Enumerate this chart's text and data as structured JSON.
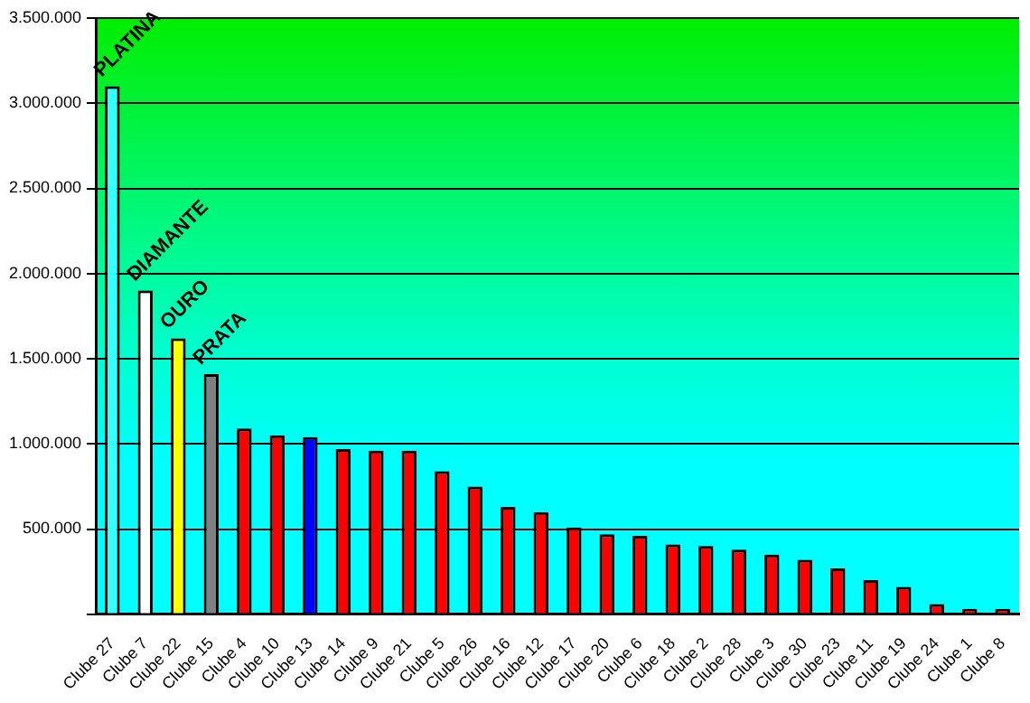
{
  "chart_data": {
    "type": "bar",
    "categories": [
      "Clube 27",
      "Clube 7",
      "Clube 22",
      "Clube 15",
      "Clube 4",
      "Clube 10",
      "Clube 13",
      "Clube 14",
      "Clube 9",
      "Clube 21",
      "Clube 5",
      "Clube 26",
      "Clube 16",
      "Clube 12",
      "Clube 17",
      "Clube 20",
      "Clube 6",
      "Clube 18",
      "Clube 2",
      "Clube 28",
      "Clube 3",
      "Clube 30",
      "Clube 23",
      "Clube 11",
      "Clube 19",
      "Clube 24",
      "Clube 1",
      "Clube 8"
    ],
    "values": [
      3100000,
      1900000,
      1620000,
      1410000,
      1090000,
      1050000,
      1040000,
      970000,
      960000,
      960000,
      840000,
      750000,
      630000,
      600000,
      510000,
      470000,
      460000,
      410000,
      400000,
      380000,
      350000,
      320000,
      270000,
      200000,
      160000,
      60000,
      30000,
      30000
    ],
    "colors": [
      "#33ffff",
      "#ffffff",
      "#ffff00",
      "#808080",
      "#ff0000",
      "#ff0000",
      "#0000ff",
      "#ff0000",
      "#ff0000",
      "#ff0000",
      "#ff0000",
      "#ff0000",
      "#ff0000",
      "#ff0000",
      "#ff0000",
      "#ff0000",
      "#ff0000",
      "#ff0000",
      "#ff0000",
      "#ff0000",
      "#ff0000",
      "#ff0000",
      "#ff0000",
      "#ff0000",
      "#ff0000",
      "#ff0000",
      "#ff0000",
      "#ff0000"
    ],
    "ylim": [
      0,
      3500000
    ],
    "yticks": [
      {
        "value": 0,
        "label": null
      },
      {
        "value": 500000,
        "label": "500.000"
      },
      {
        "value": 1000000,
        "label": "1.000.000"
      },
      {
        "value": 1500000,
        "label": "1.500.000"
      },
      {
        "value": 2000000,
        "label": "2.000.000"
      },
      {
        "value": 2500000,
        "label": "2.500.000"
      },
      {
        "value": 3000000,
        "label": "3.000.000"
      },
      {
        "value": 3500000,
        "label": "3.500.000"
      }
    ],
    "grid": "y",
    "legend": false,
    "annotations": [
      {
        "text": "PLATINA",
        "x": "Clube 27",
        "y": 3100000
      },
      {
        "text": "DIAMANTE",
        "x": "Clube 7",
        "y": 1900000
      },
      {
        "text": "OURO",
        "x": "Clube 22",
        "y": 1620000
      },
      {
        "text": "PRATA",
        "x": "Clube 15",
        "y": 1410000
      }
    ]
  }
}
